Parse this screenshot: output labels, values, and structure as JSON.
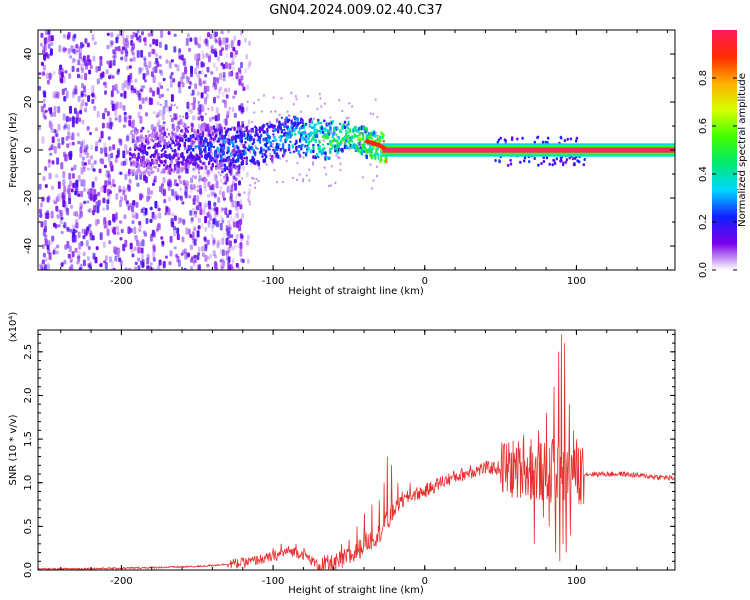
{
  "title": "GN04.2024.009.02.40.C37",
  "colors": {
    "snr_line": "#e83030",
    "stable_band": "#e8305a",
    "spectrogram_low": "#6a00e8",
    "spectrogram_mid": "#00d8e8",
    "spectrogram_high": "#38e838"
  },
  "colormap": [
    "#ffffff",
    "#7a00e8",
    "#1020ff",
    "#00d8ff",
    "#00e870",
    "#40ff00",
    "#d8ff00",
    "#ffb000",
    "#ff2a00",
    "#ff1c5a"
  ],
  "chart_data": [
    {
      "type": "heatmap",
      "name": "spectrogram",
      "xlabel": "Height of straight line (km)",
      "ylabel": "Frequency (Hz)",
      "xlim": [
        -255,
        165
      ],
      "ylim": [
        -50,
        50
      ],
      "xticks": [
        -200,
        -100,
        0,
        100
      ],
      "xtick_labels": [
        "-200",
        "-100",
        "0",
        "100"
      ],
      "yticks": [
        40,
        20,
        0,
        -20,
        -40
      ],
      "ytick_labels": [
        "40",
        "20",
        "0",
        "-20",
        "-40"
      ],
      "colorbar": {
        "label": "Normalized spectral amplitude",
        "range": [
          0,
          1
        ],
        "ticks": [
          0.0,
          0.2,
          0.4,
          0.6,
          0.8
        ],
        "tick_labels": [
          "0.0",
          "0.2",
          "0.4",
          "0.6",
          "0.8"
        ]
      },
      "ridge": {
        "x": [
          -190,
          -170,
          -150,
          -130,
          -110,
          -90,
          -80,
          -70,
          -60,
          -50,
          -40,
          -35,
          -30,
          -25,
          -10,
          0,
          50,
          80,
          100,
          165
        ],
        "y": [
          0,
          0,
          2,
          1,
          3,
          7,
          6,
          5,
          5,
          7,
          4,
          3,
          2,
          0,
          0,
          0,
          0,
          0,
          0,
          0
        ],
        "amplitude": [
          0.15,
          0.2,
          0.25,
          0.3,
          0.3,
          0.35,
          0.4,
          0.45,
          0.5,
          0.5,
          0.55,
          0.6,
          0.7,
          0.95,
          0.95,
          0.95,
          0.95,
          0.95,
          0.95,
          0.95
        ]
      }
    },
    {
      "type": "line",
      "name": "snr",
      "xlabel": "Height of straight line (km)",
      "ylabel": "SNR (10 * v/v)",
      "y_multiplier": "(x10⁴)",
      "xlim": [
        -255,
        165
      ],
      "ylim": [
        0,
        2.75
      ],
      "xticks": [
        -200,
        -100,
        0,
        100
      ],
      "xtick_labels": [
        "-200",
        "-100",
        "0",
        "100"
      ],
      "yticks": [
        0.0,
        0.5,
        1.0,
        1.5,
        2.0,
        2.5
      ],
      "ytick_labels": [
        "0.0",
        "0.5",
        "1.0",
        "1.5",
        "2.0",
        "2.5"
      ],
      "series": [
        {
          "x": [
            -255,
            -200,
            -150,
            -120,
            -100,
            -90,
            -80,
            -70,
            -60,
            -50,
            -45,
            -40,
            -35,
            -30,
            -26,
            -24,
            -20,
            -10,
            0,
            10,
            20,
            30,
            40,
            50,
            60,
            70,
            80,
            85,
            88,
            90,
            92,
            95,
            100,
            105,
            110,
            130,
            150,
            165
          ],
          "y": [
            0.01,
            0.02,
            0.04,
            0.08,
            0.15,
            0.22,
            0.18,
            0.05,
            0.06,
            0.15,
            0.2,
            0.3,
            0.35,
            0.42,
            0.55,
            0.55,
            0.7,
            0.85,
            0.9,
            1.0,
            1.07,
            1.12,
            1.17,
            1.17,
            1.15,
            1.14,
            1.12,
            1.1,
            1.1,
            1.12,
            1.1,
            1.08,
            1.08,
            1.1,
            1.1,
            1.1,
            1.07,
            1.05
          ],
          "spikes_x": [
            -120,
            -110,
            -100,
            -95,
            -85,
            -80,
            -55,
            -50,
            -45,
            -40,
            -35,
            -30,
            -27,
            -25,
            -22,
            -18,
            -15,
            -10,
            15,
            30,
            60,
            65,
            70,
            72,
            75,
            78,
            80,
            82,
            84,
            85,
            86,
            88,
            89,
            90,
            91,
            92,
            93,
            95,
            96,
            98,
            100,
            102,
            104
          ],
          "spikes_y": [
            0.1,
            0.12,
            0.25,
            0.3,
            0.3,
            0.25,
            0.3,
            0.35,
            0.5,
            0.65,
            0.75,
            0.8,
            1.0,
            1.3,
            1.2,
            1.0,
            0.9,
            1.0,
            1.05,
            1.2,
            1.4,
            1.55,
            1.5,
            0.3,
            1.6,
            0.6,
            1.8,
            0.5,
            1.5,
            2.1,
            0.2,
            2.5,
            0.1,
            2.7,
            0.3,
            2.6,
            0.2,
            1.9,
            0.4,
            1.6,
            1.5,
            0.8,
            1.4
          ],
          "spike_direction": [
            1,
            1,
            1,
            1,
            1,
            1,
            1,
            1,
            1,
            1,
            1,
            1,
            1,
            1,
            1,
            1,
            1,
            1,
            1,
            1,
            1,
            1,
            1,
            -1,
            1,
            -1,
            1,
            -1,
            1,
            1,
            -1,
            1,
            -1,
            1,
            -1,
            1,
            -1,
            1,
            -1,
            1,
            1,
            -1,
            1
          ]
        }
      ]
    }
  ]
}
